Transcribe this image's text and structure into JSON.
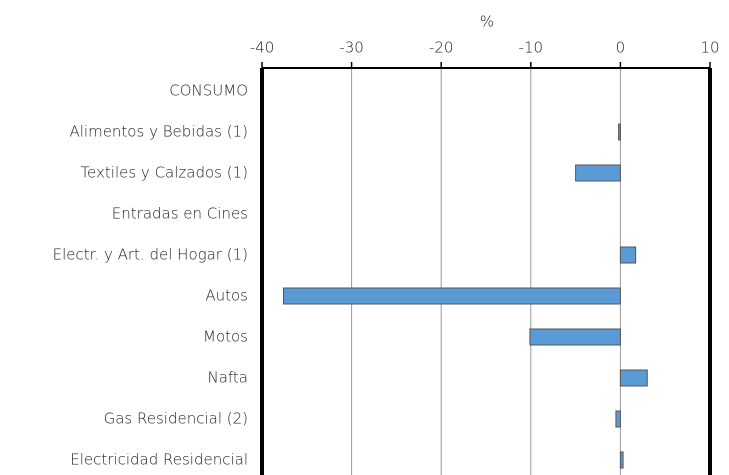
{
  "chart_data": {
    "type": "barh",
    "xlabel": "%",
    "categories": [
      "CONSUMO",
      "Alimentos y Bebidas (1)",
      "Textiles y Calzados (1)",
      "Entradas en Cines",
      "Electr. y Art. del Hogar (1)",
      "Autos",
      "Motos",
      "Nafta",
      "Gas Residencial (2)",
      "Electricidad Residencial"
    ],
    "values": [
      null,
      -0.2,
      -5,
      null,
      1.7,
      -37.6,
      -10.1,
      3.0,
      -0.5,
      0.3
    ],
    "color": "#5b9bd5",
    "xlim": [
      -40,
      10
    ],
    "xticks": [
      -40,
      -30,
      -20,
      -10,
      0,
      10
    ],
    "grid": true
  }
}
